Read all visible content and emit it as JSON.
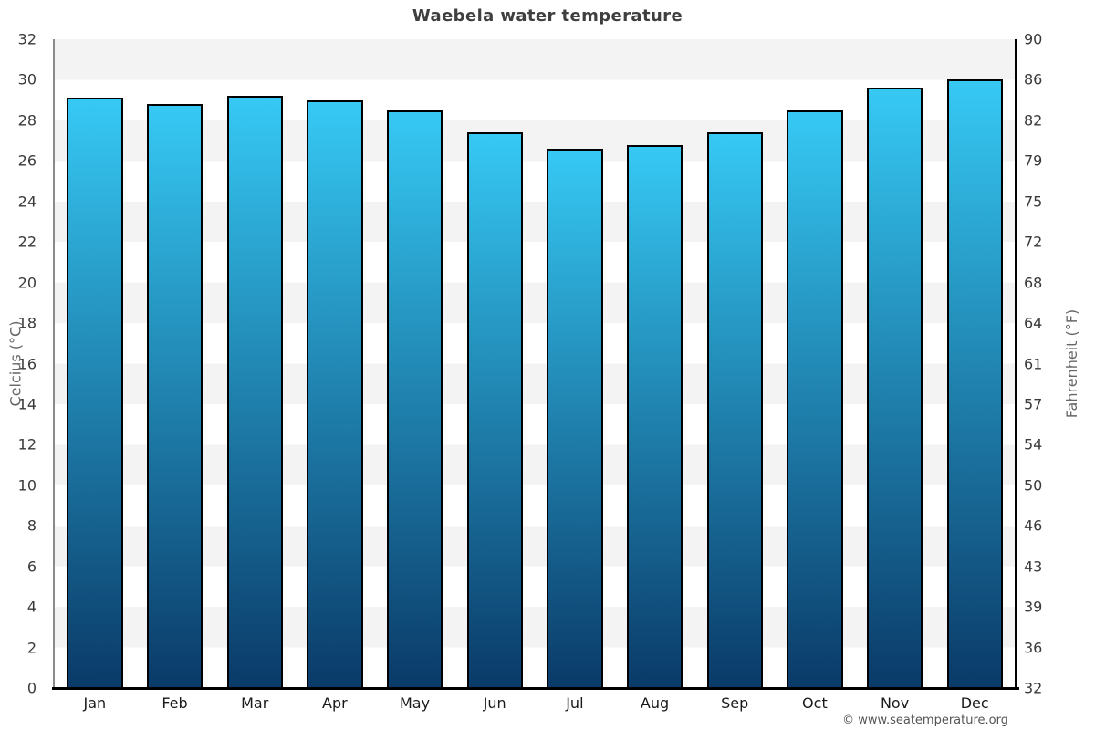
{
  "title": "Waebela water temperature",
  "chart_data": {
    "type": "bar",
    "title": "Waebela water temperature",
    "categories": [
      "Jan",
      "Feb",
      "Mar",
      "Apr",
      "May",
      "Jun",
      "Jul",
      "Aug",
      "Sep",
      "Oct",
      "Nov",
      "Dec"
    ],
    "values": [
      29.1,
      28.8,
      29.2,
      29.0,
      28.5,
      27.4,
      26.6,
      26.8,
      27.4,
      28.5,
      29.6,
      30.0
    ],
    "unit": "°C",
    "ylim": [
      0,
      32
    ],
    "left_axis": {
      "label": "Celcius (°C)",
      "ticks": [
        0,
        2,
        4,
        6,
        8,
        10,
        12,
        14,
        16,
        18,
        20,
        22,
        24,
        26,
        28,
        30,
        32
      ]
    },
    "right_axis": {
      "label": "Fahrenheit (°F)",
      "tick_labels_bottom_to_top": [
        "32",
        "36",
        "39",
        "43",
        "46",
        "50",
        "54",
        "57",
        "61",
        "64",
        "68",
        "72",
        "75",
        "79",
        "82",
        "86",
        "90"
      ]
    },
    "grid": "alternating-horizontal-bands-every-2-degrees",
    "legend": "none"
  },
  "colors": {
    "bar_gradient_top": "#36c9f4",
    "bar_gradient_bottom": "#0a3a68",
    "bar_border": "#000000",
    "band_shade": "#f3f3f3",
    "band_base": "#ffffff",
    "title_text": "#3f3f3f",
    "tick_text": "#3a3a3a",
    "axis_title_text": "#666666",
    "month_text": "#1a1a1a",
    "copyright_text": "#555555"
  },
  "footer": {
    "copyright": "© www.seatemperature.org"
  }
}
